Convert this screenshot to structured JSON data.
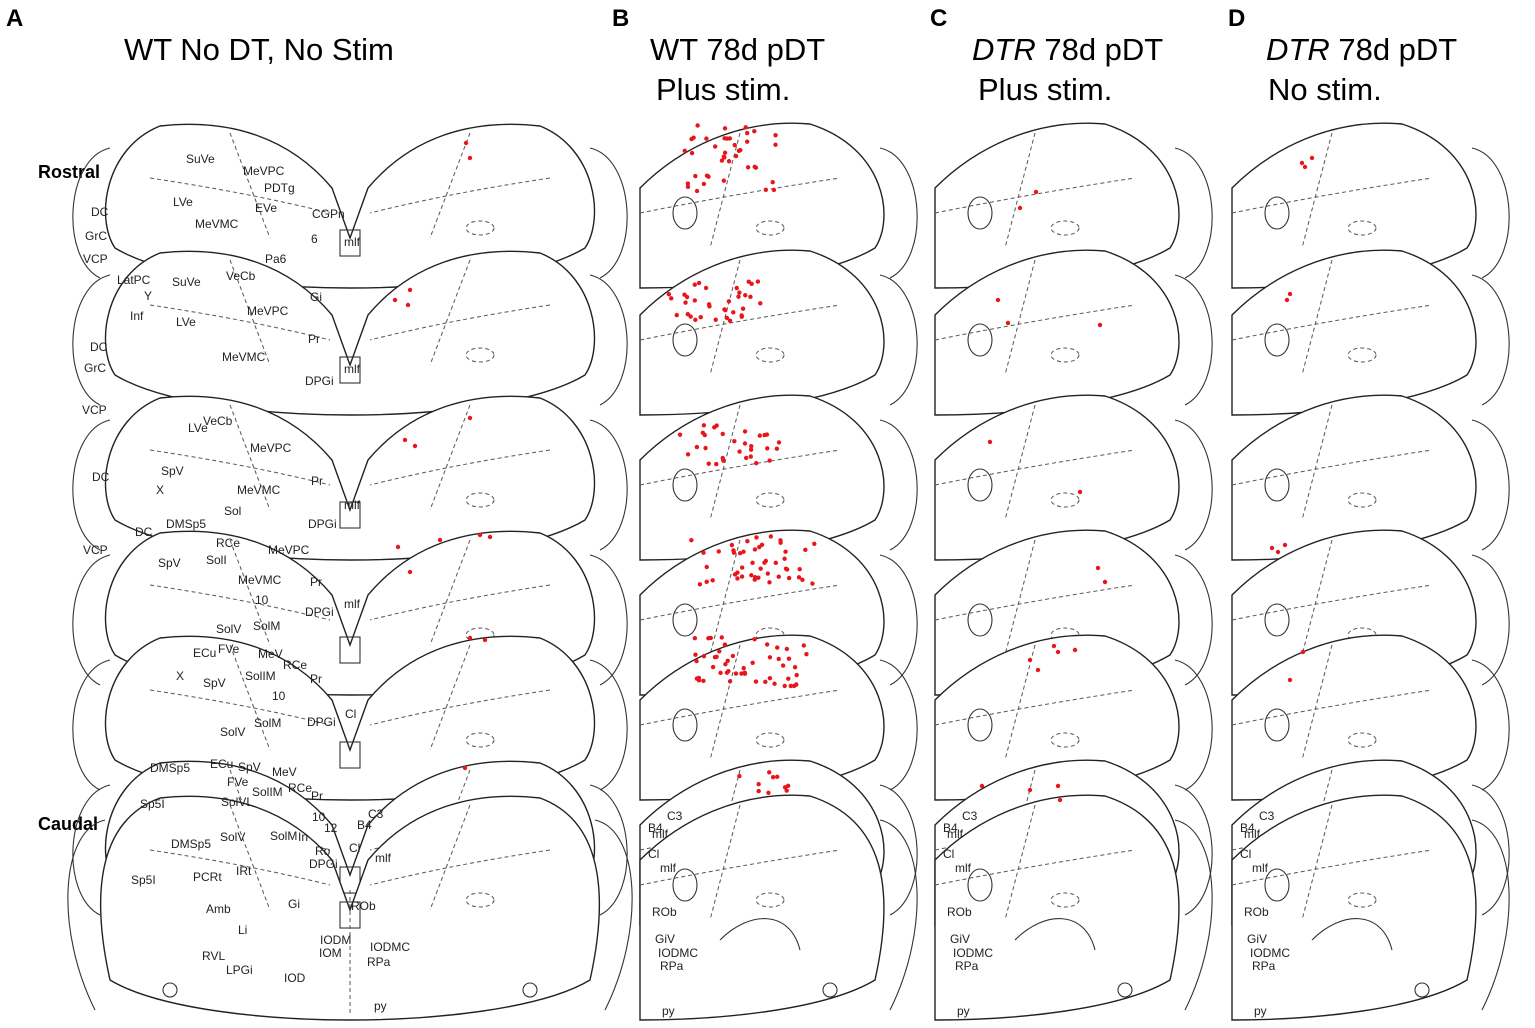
{
  "panels": [
    {
      "letter": "A",
      "title_line1": "WT No DT, No Stim",
      "title_line1_italic": "",
      "title_line2": ""
    },
    {
      "letter": "B",
      "title_line1": "WT 78d pDT",
      "title_line1_italic": "",
      "title_line2": "Plus stim."
    },
    {
      "letter": "C",
      "title_line1": " 78d pDT",
      "title_line1_italic": "DTR",
      "title_line2": "Plus stim."
    },
    {
      "letter": "D",
      "title_line1": " 78d pDT",
      "title_line1_italic": "DTR",
      "title_line2": "No stim."
    }
  ],
  "axis_labels": {
    "rostral": "Rostral",
    "caudal": "Caudal"
  },
  "region_labels_A": {
    "s1": [
      "SuVe",
      "MeVPC",
      "PDTg",
      "LVe",
      "EVe",
      "CGPn",
      "MeVMC",
      "6",
      "Pa6",
      "mlf",
      "DC",
      "GrC",
      "VCP"
    ],
    "s2": [
      "LatPC",
      "SuVe",
      "VeCb",
      "Y",
      "Inf",
      "Gi",
      "LVe",
      "MeVPC",
      "DC",
      "GrC",
      "MeVMC",
      "Pr",
      "mlf",
      "DPGi",
      "VCP"
    ],
    "s3": [
      "VeCb",
      "LVe",
      "MeVPC",
      "SpV",
      "X",
      "MeVMC",
      "Pr",
      "DC",
      "Sol",
      "mlf",
      "DPGi",
      "DMSp5",
      "VCP"
    ],
    "s4": [
      "DC",
      "SpV",
      "RCe",
      "MeVPC",
      "SolI",
      "MeVMC",
      "Pr",
      "10",
      "mlf",
      "DPGi",
      "SolV",
      "SolM"
    ],
    "s5": [
      "ECu",
      "FVe",
      "MeV",
      "X",
      "SpV",
      "SolIM",
      "RCe",
      "Pr",
      "10",
      "SolM",
      "DPGi",
      "Cl",
      "SolV",
      "DMSp5"
    ],
    "s6": [
      "Sp5I",
      "ECu",
      "SpV",
      "FVe",
      "MeV",
      "SolVL",
      "SolIM",
      "RCe",
      "Pr",
      "10",
      "12",
      "C3",
      "B4",
      "SolV",
      "SolM",
      "In",
      "Ro",
      "Cl",
      "mlf",
      "DPGi"
    ],
    "s7": [
      "DMSp5",
      "PCRt",
      "IRt",
      "Sp5I",
      "Gi",
      "ROb",
      "Amb",
      "Li",
      "IODM",
      "IODMC",
      "RVL",
      "LPGi",
      "IOM",
      "IOD",
      "RPa",
      "py"
    ]
  },
  "region_labels_right": [
    "mlf",
    "C3",
    "B4",
    "Cl",
    "mlf",
    "ROb",
    "GiV",
    "IODMC",
    "RPa",
    "py"
  ],
  "red_dot_color": "#e8161b",
  "red_dot_counts": {
    "A": 16,
    "B": 213,
    "C": 18,
    "D": 10
  }
}
